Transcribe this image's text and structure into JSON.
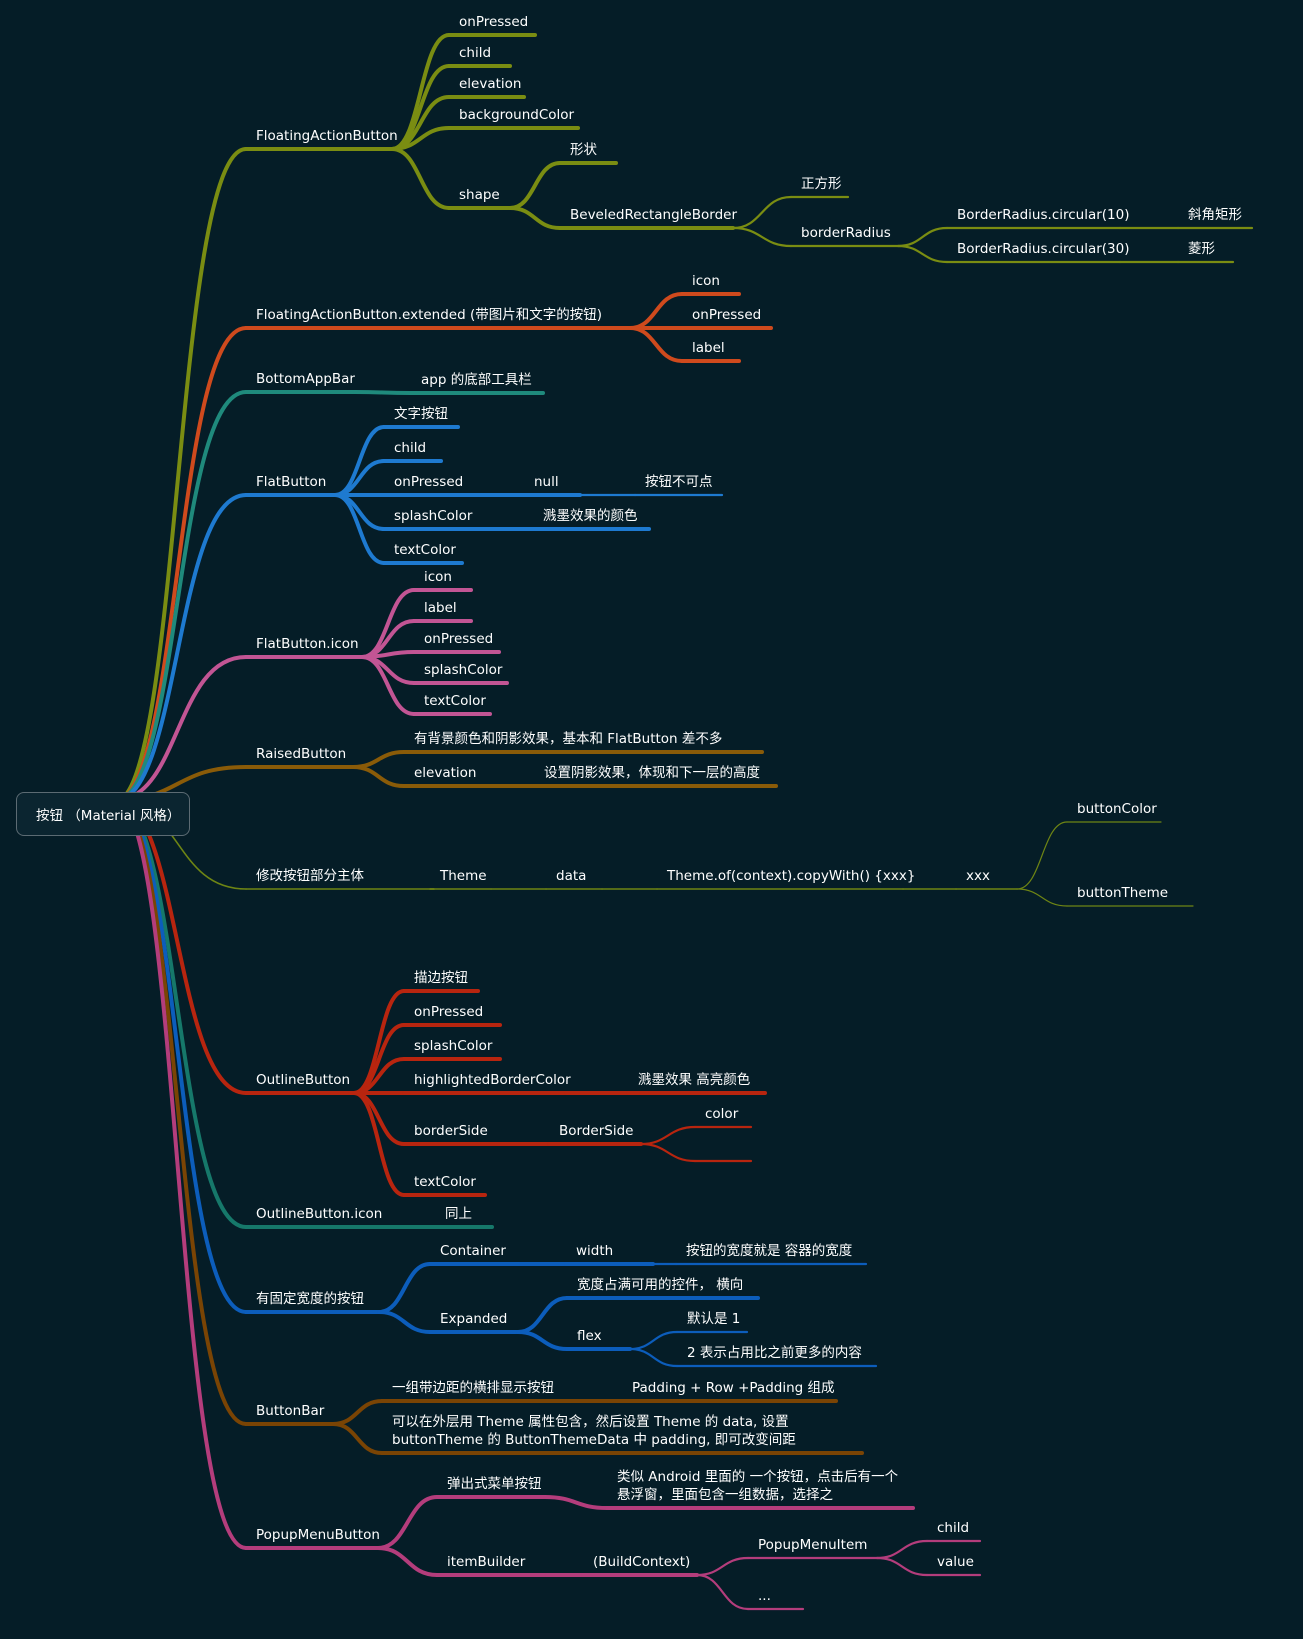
{
  "root": {
    "label": "按钮 （Material 风格）"
  },
  "colors": {
    "olive": "#7a8d12",
    "red": "#cf4a1d",
    "teal": "#1f8a7c",
    "blue": "#1e7ad0",
    "pink": "#c25594",
    "brown": "#8a5b08",
    "oliveThin": "#6e8514",
    "crimson": "#b8250f",
    "teal2": "#16786a",
    "blue2": "#0c5dbb",
    "brown2": "#7a4404",
    "magenta": "#b43d7c"
  },
  "branches": [
    {
      "label": "FloatingActionButton",
      "children": [
        {
          "label": "onPressed"
        },
        {
          "label": "child"
        },
        {
          "label": "elevation"
        },
        {
          "label": "backgroundColor"
        },
        {
          "label": "shape",
          "children": [
            {
              "label": "形状"
            },
            {
              "label": "BeveledRectangleBorder",
              "children": [
                {
                  "label": "正方形"
                },
                {
                  "label": "borderRadius",
                  "children": [
                    {
                      "label": "BorderRadius.circular(10)",
                      "children": [
                        {
                          "label": "斜角矩形"
                        }
                      ]
                    },
                    {
                      "label": "BorderRadius.circular(30)",
                      "children": [
                        {
                          "label": "菱形"
                        }
                      ]
                    }
                  ]
                }
              ]
            }
          ]
        }
      ]
    },
    {
      "label": "FloatingActionButton.extended (带图片和文字的按钮)",
      "children": [
        {
          "label": "icon"
        },
        {
          "label": "onPressed"
        },
        {
          "label": "label"
        }
      ]
    },
    {
      "label": "BottomAppBar",
      "children": [
        {
          "label": "app 的底部工具栏"
        }
      ]
    },
    {
      "label": "FlatButton",
      "children": [
        {
          "label": "文字按钮"
        },
        {
          "label": "child"
        },
        {
          "label": "onPressed",
          "children": [
            {
              "label": "null",
              "children": [
                {
                  "label": "按钮不可点"
                }
              ]
            }
          ]
        },
        {
          "label": "splashColor",
          "children": [
            {
              "label": "溅墨效果的颜色"
            }
          ]
        },
        {
          "label": "textColor"
        }
      ]
    },
    {
      "label": "FlatButton.icon",
      "children": [
        {
          "label": "icon"
        },
        {
          "label": "label"
        },
        {
          "label": "onPressed"
        },
        {
          "label": "splashColor"
        },
        {
          "label": "textColor"
        }
      ]
    },
    {
      "label": "RaisedButton",
      "children": [
        {
          "label": "有背景颜色和阴影效果，基本和 FlatButton 差不多"
        },
        {
          "label": "elevation",
          "children": [
            {
              "label": "设置阴影效果，体现和下一层的高度"
            }
          ]
        }
      ]
    },
    {
      "label": "修改按钮部分主体",
      "children": [
        {
          "label": "Theme",
          "children": [
            {
              "label": "data",
              "children": [
                {
                  "label": "Theme.of(context).copyWith() {xxx}",
                  "children": [
                    {
                      "label": "xxx",
                      "children": [
                        {
                          "label": "buttonColor"
                        },
                        {
                          "label": "buttonTheme"
                        }
                      ]
                    }
                  ]
                }
              ]
            }
          ]
        }
      ]
    },
    {
      "label": "OutlineButton",
      "children": [
        {
          "label": "描边按钮"
        },
        {
          "label": "onPressed"
        },
        {
          "label": "splashColor"
        },
        {
          "label": "highlightedBorderColor",
          "children": [
            {
              "label": "溅墨效果 高亮颜色"
            }
          ]
        },
        {
          "label": "borderSide",
          "children": [
            {
              "label": "BorderSide",
              "children": [
                {
                  "label": "color"
                },
                {
                  "label": ""
                }
              ]
            }
          ]
        },
        {
          "label": "textColor"
        }
      ]
    },
    {
      "label": "OutlineButton.icon",
      "children": [
        {
          "label": "同上"
        }
      ]
    },
    {
      "label": "有固定宽度的按钮",
      "children": [
        {
          "label": "Container",
          "children": [
            {
              "label": "width",
              "children": [
                {
                  "label": "按钮的宽度就是 容器的宽度"
                }
              ]
            }
          ]
        },
        {
          "label": "Expanded",
          "children": [
            {
              "label": "宽度占满可用的控件，  横向"
            },
            {
              "label": "flex",
              "children": [
                {
                  "label": "默认是 1"
                },
                {
                  "label": "2  表示占用比之前更多的内容"
                }
              ]
            }
          ]
        }
      ]
    },
    {
      "label": "ButtonBar",
      "children": [
        {
          "label": "一组带边距的横排显示按钮",
          "children": [
            {
              "label": "Padding + Row +Padding 组成"
            }
          ]
        },
        {
          "label": "可以在外层用 Theme 属性包含，然后设置 Theme 的 data, 设置\nbuttonTheme 的 ButtonThemeData 中 padding, 即可改变间距"
        }
      ]
    },
    {
      "label": "PopupMenuButton",
      "children": [
        {
          "label": "弹出式菜单按钮",
          "children": [
            {
              "label": "类似 Android 里面的 一个按钮，点击后有一个\n悬浮窗，里面包含一组数据，选择之"
            }
          ]
        },
        {
          "label": "itemBuilder",
          "children": [
            {
              "label": "(BuildContext)",
              "children": [
                {
                  "label": "PopupMenuItem",
                  "children": [
                    {
                      "label": "child"
                    },
                    {
                      "label": "value"
                    }
                  ]
                },
                {
                  "label": "..."
                }
              ]
            }
          ]
        }
      ]
    }
  ]
}
